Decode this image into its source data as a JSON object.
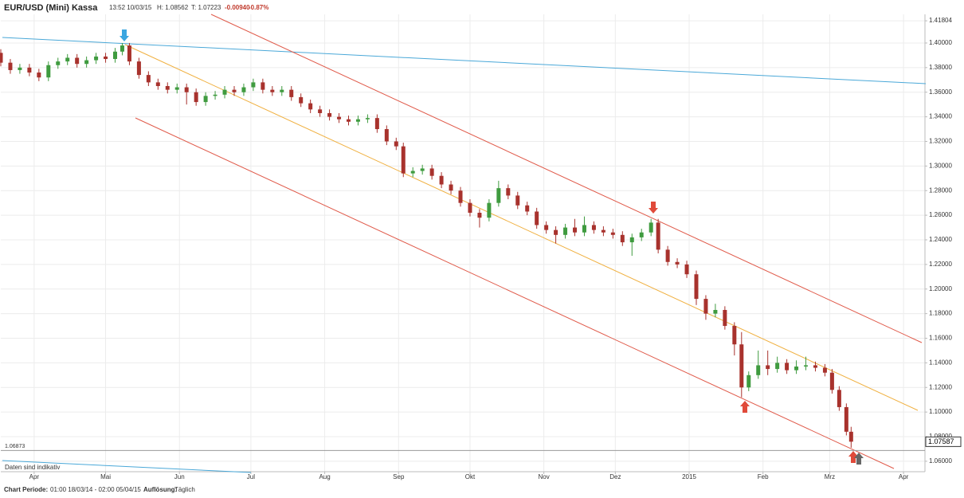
{
  "header": {
    "title": "EUR/USD (Mini) Kassa",
    "time": "13:52 10/03/15",
    "high": "H: 1.08562",
    "low": "T: 1.07223",
    "change": "-0.00940",
    "change_pct": "-0.87%"
  },
  "footer": {
    "period_label": "Chart Periode:",
    "period": "01:00 18/03/14 - 02:00 05/04/15",
    "resolution_label": "Auflösung:",
    "resolution": "Täglich"
  },
  "chart_data": {
    "type": "candlestick",
    "up_color": "#3f9b3f",
    "down_color": "#a8322d",
    "grid": true,
    "note": "Daten sind indikativ",
    "last_price": 1.07587,
    "reference_level": 1.06873,
    "x": [
      0,
      4,
      8,
      12,
      16,
      20,
      24,
      28,
      32,
      36,
      40,
      44,
      48,
      51,
      54,
      58,
      62,
      66,
      70,
      74,
      78,
      82,
      86,
      90,
      94,
      98,
      102,
      106,
      110,
      114,
      118,
      122,
      126,
      130,
      134,
      138,
      142,
      146,
      150,
      154,
      158,
      162,
      166,
      169,
      173,
      177,
      181,
      185,
      189,
      193,
      197,
      201,
      205,
      209,
      213,
      217,
      221,
      225,
      229,
      233,
      237,
      241,
      245,
      249,
      253,
      257,
      261,
      265,
      269,
      273,
      276,
      280,
      284,
      288,
      292,
      296,
      300,
      304,
      308,
      311,
      314,
      318,
      322,
      326,
      330,
      334,
      338,
      342,
      346,
      349,
      352,
      355,
      357
    ],
    "open": [
      1.392,
      1.384,
      1.378,
      1.38,
      1.376,
      1.372,
      1.382,
      1.385,
      1.388,
      1.383,
      1.386,
      1.389,
      1.387,
      1.393,
      1.398,
      1.385,
      1.374,
      1.368,
      1.365,
      1.362,
      1.364,
      1.36,
      1.352,
      1.357,
      1.358,
      1.362,
      1.36,
      1.364,
      1.368,
      1.362,
      1.36,
      1.362,
      1.356,
      1.351,
      1.346,
      1.343,
      1.34,
      1.338,
      1.336,
      1.338,
      1.339,
      1.33,
      1.32,
      1.316,
      1.294,
      1.296,
      1.298,
      1.292,
      1.285,
      1.28,
      1.27,
      1.262,
      1.258,
      1.27,
      1.282,
      1.276,
      1.268,
      1.263,
      1.252,
      1.248,
      1.244,
      1.25,
      1.246,
      1.252,
      1.248,
      1.246,
      1.244,
      1.238,
      1.242,
      1.246,
      1.254,
      1.232,
      1.222,
      1.22,
      1.212,
      1.192,
      1.18,
      1.183,
      1.17,
      1.155,
      1.12,
      1.13,
      1.138,
      1.135,
      1.14,
      1.134,
      1.137,
      1.138,
      1.136,
      1.132,
      1.118,
      1.104,
      1.084
    ],
    "high": [
      1.395,
      1.387,
      1.383,
      1.383,
      1.379,
      1.385,
      1.388,
      1.391,
      1.391,
      1.389,
      1.392,
      1.392,
      1.396,
      1.4,
      1.4,
      1.388,
      1.377,
      1.371,
      1.368,
      1.367,
      1.367,
      1.363,
      1.36,
      1.361,
      1.365,
      1.365,
      1.367,
      1.371,
      1.371,
      1.365,
      1.365,
      1.365,
      1.359,
      1.354,
      1.349,
      1.346,
      1.343,
      1.341,
      1.341,
      1.342,
      1.342,
      1.333,
      1.323,
      1.319,
      1.299,
      1.301,
      1.301,
      1.295,
      1.288,
      1.283,
      1.273,
      1.265,
      1.273,
      1.288,
      1.285,
      1.279,
      1.271,
      1.266,
      1.255,
      1.251,
      1.253,
      1.257,
      1.259,
      1.255,
      1.251,
      1.249,
      1.247,
      1.245,
      1.249,
      1.257,
      1.257,
      1.235,
      1.225,
      1.223,
      1.215,
      1.195,
      1.188,
      1.186,
      1.173,
      1.165,
      1.133,
      1.15,
      1.15,
      1.145,
      1.143,
      1.142,
      1.145,
      1.141,
      1.139,
      1.135,
      1.121,
      1.107,
      1.088
    ],
    "low": [
      1.381,
      1.375,
      1.375,
      1.373,
      1.369,
      1.369,
      1.379,
      1.382,
      1.38,
      1.38,
      1.383,
      1.384,
      1.384,
      1.39,
      1.382,
      1.371,
      1.365,
      1.362,
      1.359,
      1.359,
      1.35,
      1.349,
      1.349,
      1.354,
      1.355,
      1.357,
      1.357,
      1.361,
      1.359,
      1.357,
      1.357,
      1.353,
      1.348,
      1.343,
      1.34,
      1.337,
      1.335,
      1.333,
      1.333,
      1.335,
      1.327,
      1.317,
      1.313,
      1.291,
      1.291,
      1.293,
      1.289,
      1.282,
      1.277,
      1.267,
      1.259,
      1.25,
      1.255,
      1.267,
      1.273,
      1.265,
      1.26,
      1.249,
      1.245,
      1.237,
      1.241,
      1.243,
      1.243,
      1.245,
      1.243,
      1.241,
      1.235,
      1.227,
      1.239,
      1.243,
      1.229,
      1.219,
      1.217,
      1.209,
      1.187,
      1.175,
      1.177,
      1.167,
      1.146,
      1.112,
      1.117,
      1.127,
      1.13,
      1.132,
      1.131,
      1.131,
      1.134,
      1.133,
      1.129,
      1.115,
      1.101,
      1.081,
      1.071
    ],
    "close": [
      1.384,
      1.378,
      1.38,
      1.376,
      1.372,
      1.382,
      1.385,
      1.388,
      1.383,
      1.386,
      1.389,
      1.387,
      1.393,
      1.398,
      1.385,
      1.374,
      1.368,
      1.365,
      1.362,
      1.364,
      1.36,
      1.352,
      1.357,
      1.358,
      1.362,
      1.36,
      1.364,
      1.368,
      1.362,
      1.36,
      1.362,
      1.356,
      1.351,
      1.346,
      1.343,
      1.34,
      1.338,
      1.336,
      1.338,
      1.339,
      1.33,
      1.32,
      1.316,
      1.294,
      1.296,
      1.298,
      1.292,
      1.285,
      1.28,
      1.27,
      1.262,
      1.258,
      1.27,
      1.282,
      1.276,
      1.268,
      1.263,
      1.252,
      1.248,
      1.244,
      1.25,
      1.246,
      1.252,
      1.248,
      1.246,
      1.244,
      1.238,
      1.242,
      1.246,
      1.254,
      1.232,
      1.222,
      1.22,
      1.212,
      1.192,
      1.18,
      1.183,
      1.17,
      1.155,
      1.12,
      1.13,
      1.138,
      1.135,
      1.14,
      1.134,
      1.137,
      1.138,
      1.136,
      1.132,
      1.118,
      1.104,
      1.084,
      1.0759
    ],
    "xlim": [
      0,
      388
    ],
    "xticks": [
      {
        "value": 14,
        "label": "Apr"
      },
      {
        "value": 44,
        "label": "Mai"
      },
      {
        "value": 75,
        "label": "Jun"
      },
      {
        "value": 105,
        "label": "Jul"
      },
      {
        "value": 136,
        "label": "Aug"
      },
      {
        "value": 167,
        "label": "Sep"
      },
      {
        "value": 197,
        "label": "Okt"
      },
      {
        "value": 228,
        "label": "Nov"
      },
      {
        "value": 258,
        "label": "Dez"
      },
      {
        "value": 289,
        "label": "2015"
      },
      {
        "value": 320,
        "label": "Feb"
      },
      {
        "value": 348,
        "label": "Mrz"
      },
      {
        "value": 379,
        "label": "Apr"
      }
    ],
    "ylim": [
      1.0515,
      1.4233
    ],
    "yticks": [
      {
        "value": 1.06,
        "label": "1.06000"
      },
      {
        "value": 1.08,
        "label": "1.08000"
      },
      {
        "value": 1.1,
        "label": "1.10000"
      },
      {
        "value": 1.12,
        "label": "1.12000"
      },
      {
        "value": 1.14,
        "label": "1.14000"
      },
      {
        "value": 1.16,
        "label": "1.16000"
      },
      {
        "value": 1.18,
        "label": "1.18000"
      },
      {
        "value": 1.2,
        "label": "1.20000"
      },
      {
        "value": 1.22,
        "label": "1.22000"
      },
      {
        "value": 1.24,
        "label": "1.24000"
      },
      {
        "value": 1.26,
        "label": "1.26000"
      },
      {
        "value": 1.28,
        "label": "1.28000"
      },
      {
        "value": 1.3,
        "label": "1.30000"
      },
      {
        "value": 1.32,
        "label": "1.32000"
      },
      {
        "value": 1.34,
        "label": "1.34000"
      },
      {
        "value": 1.36,
        "label": "1.36000"
      },
      {
        "value": 1.38,
        "label": "1.38000"
      },
      {
        "value": 1.4,
        "label": "1.40000"
      },
      1.41804
    ]
  }
}
